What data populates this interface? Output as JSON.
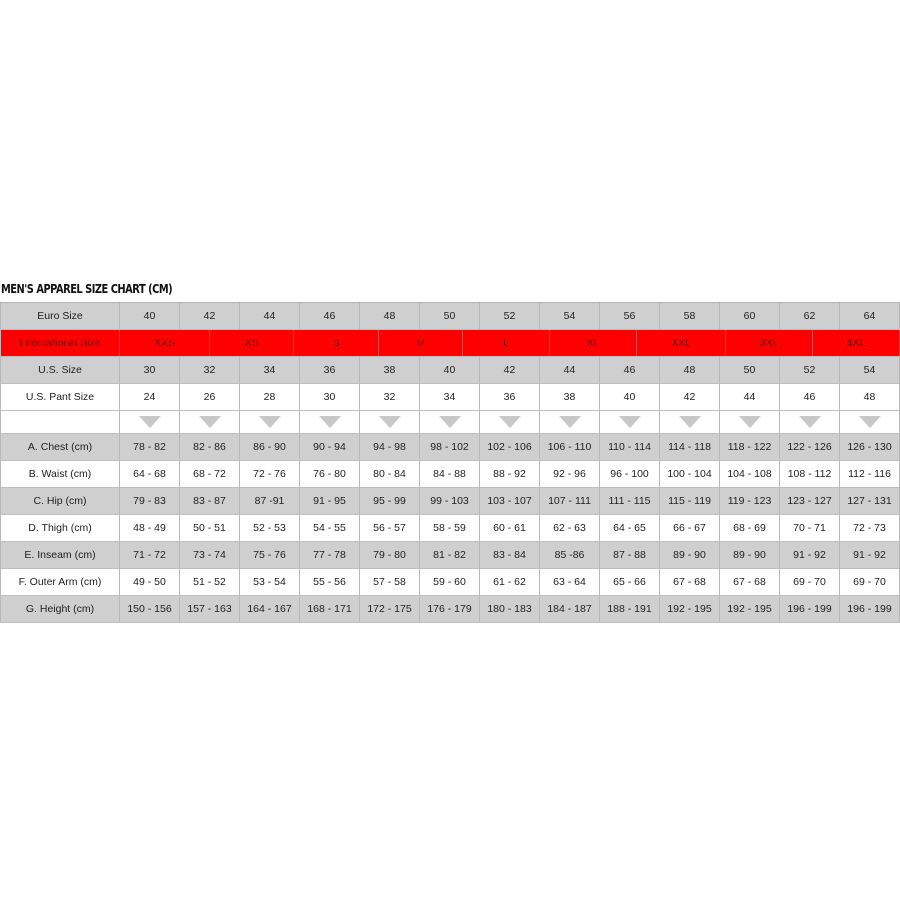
{
  "title": "MEN'S APPAREL SIZE CHART (CM)",
  "colors": {
    "header_grey": "#cfcfcf",
    "intl_red": "#ff0000",
    "arrow": "#c8c8c8"
  },
  "euro": {
    "label": "Euro Size",
    "values": [
      "40",
      "42",
      "44",
      "46",
      "48",
      "50",
      "52",
      "54",
      "56",
      "58",
      "60",
      "62",
      "64"
    ]
  },
  "intl": {
    "label": "International Size",
    "values": [
      "XXS",
      "XS",
      "S",
      "M",
      "L",
      "XL",
      "XXL",
      "3XL",
      "4XL"
    ]
  },
  "us": {
    "label": "U.S. Size",
    "values": [
      "30",
      "32",
      "34",
      "36",
      "38",
      "40",
      "42",
      "44",
      "46",
      "48",
      "50",
      "52",
      "54"
    ]
  },
  "pant": {
    "label": "U.S. Pant Size",
    "values": [
      "24",
      "26",
      "28",
      "30",
      "32",
      "34",
      "36",
      "38",
      "40",
      "42",
      "44",
      "46",
      "48"
    ]
  },
  "measurements": [
    {
      "label": "A. Chest (cm)",
      "values": [
        "78 - 82",
        "82 - 86",
        "86 - 90",
        "90 - 94",
        "94 - 98",
        "98 - 102",
        "102 - 106",
        "106 - 110",
        "110 - 114",
        "114 - 118",
        "118 - 122",
        "122 - 126",
        "126 - 130"
      ]
    },
    {
      "label": "B. Waist (cm)",
      "values": [
        "64 - 68",
        "68 - 72",
        "72 - 76",
        "76 - 80",
        "80 - 84",
        "84 - 88",
        "88 - 92",
        "92 - 96",
        "96 - 100",
        "100 - 104",
        "104 - 108",
        "108 - 112",
        "112 - 116"
      ]
    },
    {
      "label": "C. Hip (cm)",
      "values": [
        "79 - 83",
        "83 - 87",
        "87 -91",
        "91 - 95",
        "95 - 99",
        "99 - 103",
        "103 - 107",
        "107 - 111",
        "111 - 115",
        "115 - 119",
        "119 - 123",
        "123 - 127",
        "127 - 131"
      ]
    },
    {
      "label": "D. Thigh (cm)",
      "values": [
        "48 - 49",
        "50 - 51",
        "52 - 53",
        "54 - 55",
        "56 - 57",
        "58 - 59",
        "60 - 61",
        "62 - 63",
        "64 - 65",
        "66 - 67",
        "68 - 69",
        "70 - 71",
        "72 - 73"
      ]
    },
    {
      "label": "E. Inseam (cm)",
      "values": [
        "71 - 72",
        "73 - 74",
        "75 - 76",
        "77 - 78",
        "79 - 80",
        "81 - 82",
        "83 - 84",
        "85 -86",
        "87 - 88",
        "89 - 90",
        "89 - 90",
        "91 - 92",
        "91 - 92"
      ]
    },
    {
      "label": "F. Outer Arm (cm)",
      "values": [
        "49 - 50",
        "51 - 52",
        "53 - 54",
        "55 - 56",
        "57 - 58",
        "59 - 60",
        "61 - 62",
        "63 - 64",
        "65 - 66",
        "67 - 68",
        "67 - 68",
        "69 - 70",
        "69 - 70"
      ]
    },
    {
      "label": "G. Height (cm)",
      "values": [
        "150 - 156",
        "157 - 163",
        "164 - 167",
        "168 - 171",
        "172 - 175",
        "176 - 179",
        "180 - 183",
        "184 - 187",
        "188 - 191",
        "192 - 195",
        "192 - 195",
        "196 - 199",
        "196 - 199"
      ]
    }
  ]
}
